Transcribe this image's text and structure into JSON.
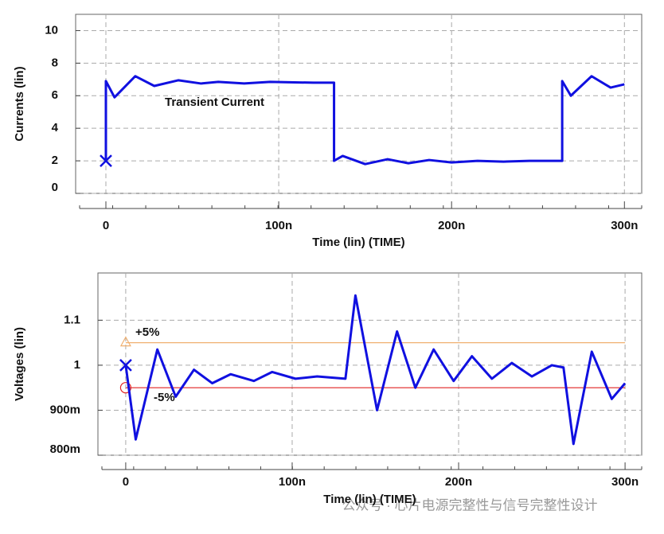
{
  "chart_data": [
    {
      "type": "line",
      "ylabel": "Currents (lin)",
      "xlabel": "Time (lin) (TIME)",
      "xlim": [
        -1.75e-08,
        3.1e-07
      ],
      "ylim": [
        0,
        11
      ],
      "xticks": [
        0,
        {
          "value": 1e-07,
          "label": "100n"
        },
        {
          "value": 2e-07,
          "label": "200n"
        },
        {
          "value": 3e-07,
          "label": "300n"
        }
      ],
      "yticks": [
        0,
        2,
        4,
        6,
        8,
        10
      ],
      "grid": true,
      "annotations": [
        "Transient Current"
      ],
      "series": [
        {
          "name": "Transient Current",
          "color": "#1010e0",
          "x": [
            0,
            0,
            5e-09,
            1.7e-08,
            2.8e-08,
            4.2e-08,
            5.5e-08,
            6.5e-08,
            8e-08,
            9.5e-08,
            1.2e-07,
            1.32e-07,
            1.32e-07,
            1.37e-07,
            1.5e-07,
            1.63e-07,
            1.75e-07,
            1.87e-07,
            2e-07,
            2.15e-07,
            2.3e-07,
            2.45e-07,
            2.64e-07,
            2.64e-07,
            2.69e-07,
            2.81e-07,
            2.92e-07,
            3e-07
          ],
          "values": [
            2,
            6.9,
            5.9,
            7.2,
            6.6,
            6.95,
            6.75,
            6.85,
            6.75,
            6.85,
            6.8,
            6.8,
            2.0,
            2.3,
            1.8,
            2.1,
            1.85,
            2.05,
            1.9,
            2.0,
            1.95,
            2.0,
            2.0,
            6.9,
            6.0,
            7.2,
            6.5,
            6.7
          ]
        }
      ]
    },
    {
      "type": "line",
      "ylabel": "Voltages (lin)",
      "xlabel": "Time (lin) (TIME)",
      "xlim": [
        -1.67e-08,
        3.1e-07
      ],
      "ylim": [
        0.8,
        1.205
      ],
      "xticks": [
        0,
        {
          "value": 1e-07,
          "label": "100n"
        },
        {
          "value": 2e-07,
          "label": "200n"
        },
        {
          "value": 3e-07,
          "label": "300n"
        }
      ],
      "yticks": [
        {
          "value": 0.8,
          "label": "800m"
        },
        {
          "value": 0.9,
          "label": "900m"
        },
        1,
        1.1
      ],
      "grid": true,
      "annotations": [
        "+5%",
        "-5%"
      ],
      "series": [
        {
          "name": "+5%",
          "color": "#f0b070",
          "x": [
            0,
            3e-07
          ],
          "values": [
            1.05,
            1.05
          ]
        },
        {
          "name": "-5%",
          "color": "#e02020",
          "x": [
            0,
            3e-07
          ],
          "values": [
            0.95,
            0.95
          ]
        },
        {
          "name": "Voltage",
          "color": "#1010e0",
          "x": [
            0,
            6e-09,
            1.9e-08,
            3e-08,
            4.1e-08,
            5.2e-08,
            6.3e-08,
            7.7e-08,
            8.8e-08,
            1.02e-07,
            1.15e-07,
            1.32e-07,
            1.38e-07,
            1.51e-07,
            1.63e-07,
            1.74e-07,
            1.85e-07,
            1.97e-07,
            2.08e-07,
            2.2e-07,
            2.32e-07,
            2.44e-07,
            2.56e-07,
            2.63e-07,
            2.69e-07,
            2.8e-07,
            2.92e-07,
            3e-07
          ],
          "values": [
            1.0,
            0.835,
            1.035,
            0.93,
            0.99,
            0.96,
            0.98,
            0.965,
            0.985,
            0.97,
            0.975,
            0.97,
            1.155,
            0.9,
            1.075,
            0.95,
            1.035,
            0.965,
            1.02,
            0.97,
            1.005,
            0.975,
            1.0,
            0.995,
            0.825,
            1.03,
            0.925,
            0.96
          ]
        }
      ]
    }
  ],
  "watermark": "公众号 · 心片电源完整性与信号完整性设计"
}
